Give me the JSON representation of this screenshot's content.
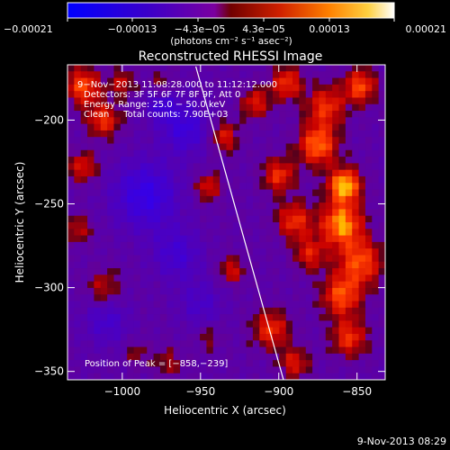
{
  "chart_data": {
    "type": "heatmap",
    "title": "Reconstructed RHESSI Image",
    "xlabel": "Heliocentric X (arcsec)",
    "ylabel": "Heliocentric Y (arcsec)",
    "xlim": [
      -1035,
      -832
    ],
    "ylim": [
      -355,
      -167
    ],
    "xticks": [
      -1000,
      -950,
      -900,
      -850
    ],
    "xtick_labels": [
      "−1000",
      "−950",
      "−900",
      "−850"
    ],
    "yticks": [
      -200,
      -250,
      -300,
      -350
    ],
    "ytick_labels": [
      "−200",
      "−250",
      "−300",
      "−350"
    ],
    "colorbar": {
      "range": [
        -0.00021,
        0.00021
      ],
      "ticks": [
        -0.00021,
        -0.00013,
        -4.3e-05,
        4.3e-05,
        0.00013,
        0.00021
      ],
      "tick_labels": [
        "−0.00021",
        "−0.00013",
        "−4.3e−05",
        "4.3e−05",
        "0.00013",
        "0.00021"
      ],
      "units": "(photons cm⁻² s⁻¹ asec⁻²)"
    },
    "annotations": [
      "9−Nov−2013 11:08:28.000 to 11:12:12.000",
      "Detectors: 3F 5F 6F 7F 8F 9F, Att 0",
      "Energy Range: 25.0 − 50.0 keV",
      "Clean     Total counts: 7.90E+03"
    ],
    "peak": {
      "label": "Position of Peak = [−858,−239]",
      "x": -858,
      "y": -239
    },
    "limb": [
      {
        "x": -953,
        "y": -168
      },
      {
        "x": -897,
        "y": -355
      }
    ],
    "blobs": [
      {
        "x": -858,
        "y": -239,
        "amp": 1.0,
        "r": 10
      },
      {
        "x": -860,
        "y": -262,
        "amp": 0.9,
        "r": 13
      },
      {
        "x": -848,
        "y": -285,
        "amp": 0.7,
        "r": 14
      },
      {
        "x": -860,
        "y": -305,
        "amp": 0.7,
        "r": 12
      },
      {
        "x": -855,
        "y": -330,
        "amp": 0.6,
        "r": 11
      },
      {
        "x": -848,
        "y": -180,
        "amp": 0.7,
        "r": 10
      },
      {
        "x": -870,
        "y": -192,
        "amp": 0.6,
        "r": 12
      },
      {
        "x": -875,
        "y": -215,
        "amp": 0.8,
        "r": 12
      },
      {
        "x": -895,
        "y": -178,
        "amp": 0.6,
        "r": 10
      },
      {
        "x": -915,
        "y": -190,
        "amp": 0.5,
        "r": 9
      },
      {
        "x": -900,
        "y": -233,
        "amp": 0.6,
        "r": 10
      },
      {
        "x": -890,
        "y": -260,
        "amp": 0.6,
        "r": 11
      },
      {
        "x": -880,
        "y": -280,
        "amp": 0.5,
        "r": 10
      },
      {
        "x": -905,
        "y": -325,
        "amp": 0.6,
        "r": 11
      },
      {
        "x": -890,
        "y": -345,
        "amp": 0.5,
        "r": 9
      },
      {
        "x": -935,
        "y": -210,
        "amp": 0.5,
        "r": 9
      },
      {
        "x": -945,
        "y": -240,
        "amp": 0.5,
        "r": 8
      },
      {
        "x": -930,
        "y": -290,
        "amp": 0.45,
        "r": 8
      },
      {
        "x": -1025,
        "y": -180,
        "amp": 0.7,
        "r": 11
      },
      {
        "x": -1012,
        "y": -200,
        "amp": 0.6,
        "r": 10
      },
      {
        "x": -1025,
        "y": -228,
        "amp": 0.5,
        "r": 9
      },
      {
        "x": -1028,
        "y": -265,
        "amp": 0.4,
        "r": 8
      },
      {
        "x": -1012,
        "y": -300,
        "amp": 0.4,
        "r": 10
      },
      {
        "x": -1000,
        "y": -178,
        "amp": 0.4,
        "r": 8
      },
      {
        "x": -975,
        "y": -180,
        "amp": 0.35,
        "r": 8
      },
      {
        "x": -970,
        "y": -345,
        "amp": 0.3,
        "r": 9
      },
      {
        "x": -945,
        "y": -330,
        "amp": 0.25,
        "r": 8
      },
      {
        "x": -990,
        "y": -340,
        "amp": 0.25,
        "r": 8
      },
      {
        "x": -985,
        "y": -245,
        "amp": -0.6,
        "r": 20
      },
      {
        "x": -960,
        "y": -205,
        "amp": -0.5,
        "r": 15
      },
      {
        "x": -965,
        "y": -280,
        "amp": -0.4,
        "r": 15
      },
      {
        "x": -1010,
        "y": -320,
        "amp": -0.35,
        "r": 14
      },
      {
        "x": -950,
        "y": -310,
        "amp": -0.3,
        "r": 14
      },
      {
        "x": -975,
        "y": -190,
        "amp": -0.45,
        "r": 10
      }
    ]
  },
  "footer": {
    "timestamp": "9-Nov-2013 08:29"
  }
}
